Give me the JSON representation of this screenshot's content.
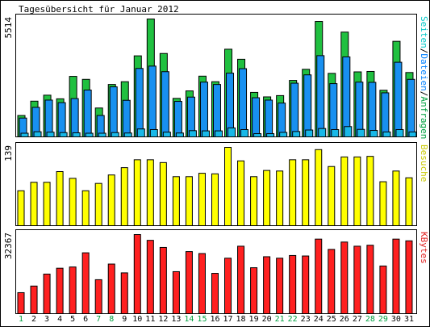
{
  "chart_data": [
    {
      "type": "bar",
      "title": "Tagesübersicht für Januar 2012",
      "ylabel": "5514",
      "ylim": [
        0,
        5514
      ],
      "categories": [
        "1",
        "2",
        "3",
        "4",
        "5",
        "6",
        "7",
        "8",
        "9",
        "10",
        "11",
        "12",
        "13",
        "14",
        "15",
        "16",
        "17",
        "18",
        "19",
        "20",
        "21",
        "22",
        "23",
        "24",
        "25",
        "26",
        "27",
        "28",
        "29",
        "30",
        "31"
      ],
      "legend": [
        {
          "text": "Seiten",
          "color": "#00c8c8"
        },
        {
          "text": "/",
          "color": "#000000"
        },
        {
          "text": "Dateien",
          "color": "#0080ff"
        },
        {
          "text": "/",
          "color": "#000000"
        },
        {
          "text": "Anfragen",
          "color": "#00a040"
        }
      ],
      "series": [
        {
          "name": "Anfragen",
          "color": "#20c040",
          "values": [
            1000,
            1670,
            1950,
            1780,
            2830,
            2690,
            1350,
            2450,
            2580,
            3790,
            5514,
            3900,
            1800,
            2150,
            2840,
            2580,
            4100,
            3630,
            2080,
            1870,
            1930,
            2640,
            3160,
            5400,
            2970,
            4900,
            3040,
            3060,
            2180,
            4470,
            3010
          ]
        },
        {
          "name": "Dateien",
          "color": "#1890f0",
          "values": [
            880,
            1380,
            1720,
            1600,
            1790,
            2190,
            1000,
            2340,
            1710,
            3200,
            3310,
            3050,
            1660,
            1860,
            2560,
            2450,
            2980,
            3190,
            1830,
            1720,
            1580,
            2510,
            2900,
            3800,
            2490,
            3740,
            2560,
            2550,
            2060,
            3490,
            2690
          ]
        },
        {
          "name": "Seiten",
          "color": "#18b8e8",
          "values": [
            170,
            240,
            220,
            200,
            190,
            170,
            170,
            200,
            180,
            370,
            340,
            220,
            180,
            290,
            280,
            280,
            420,
            340,
            150,
            150,
            210,
            250,
            320,
            390,
            340,
            480,
            350,
            300,
            230,
            340,
            230
          ]
        }
      ]
    },
    {
      "type": "bar",
      "ylabel": "139",
      "ylim": [
        0,
        139
      ],
      "legend": [
        {
          "text": "Besuche",
          "color": "#c8c800"
        }
      ],
      "series": [
        {
          "name": "Besuche",
          "color": "#ffff00",
          "values": [
            62,
            77,
            77,
            96,
            84,
            62,
            75,
            90,
            103,
            117,
            117,
            112,
            87,
            87,
            93,
            92,
            139,
            115,
            87,
            98,
            97,
            117,
            117,
            135,
            105,
            122,
            122,
            123,
            78,
            97,
            85
          ]
        }
      ]
    },
    {
      "type": "bar",
      "ylabel": "32367",
      "ylim": [
        0,
        32367
      ],
      "legend": [
        {
          "text": "KBytes",
          "color": "#e02020"
        }
      ],
      "series": [
        {
          "name": "KBytes",
          "color": "#ff2020",
          "values": [
            8600,
            11300,
            16200,
            18600,
            19100,
            24900,
            13900,
            20300,
            16700,
            32367,
            30000,
            27100,
            17200,
            25400,
            24600,
            16500,
            22700,
            27600,
            18800,
            23300,
            22700,
            23800,
            23600,
            30500,
            26300,
            29300,
            27600,
            28000,
            19500,
            30500,
            29800
          ]
        }
      ]
    }
  ],
  "xaxis": {
    "labels": [
      "1",
      "2",
      "3",
      "4",
      "5",
      "6",
      "7",
      "8",
      "9",
      "10",
      "11",
      "12",
      "13",
      "14",
      "15",
      "16",
      "17",
      "18",
      "19",
      "20",
      "21",
      "22",
      "23",
      "24",
      "25",
      "26",
      "27",
      "28",
      "29",
      "30",
      "31"
    ],
    "weekend": [
      1,
      7,
      8,
      14,
      15,
      21,
      22,
      28,
      29
    ],
    "weekend_color": "#00a040",
    "weekday_color": "#000000"
  }
}
